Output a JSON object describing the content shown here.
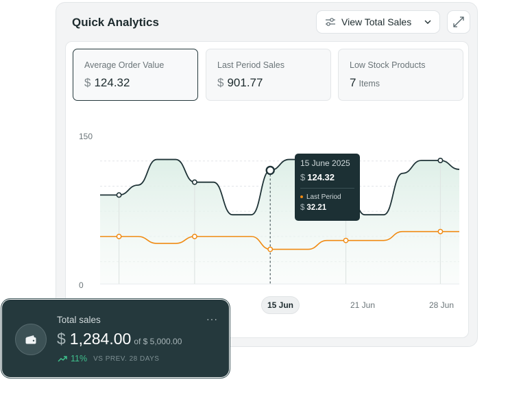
{
  "panel": {
    "title": "Quick Analytics",
    "view_button": {
      "label": "View Total Sales",
      "icon": "sliders-icon"
    },
    "expand_icon": "expand-icon"
  },
  "stats": [
    {
      "label": "Average Order Value",
      "currency": "$",
      "value": "124.32",
      "unit": ""
    },
    {
      "label": "Last Period Sales",
      "currency": "$",
      "value": "901.77",
      "unit": ""
    },
    {
      "label": "Low Stock Products",
      "currency": "",
      "value": "7",
      "unit": "Items"
    }
  ],
  "chart_data": {
    "type": "line",
    "ylim": [
      0,
      150
    ],
    "y_ticks": [
      "150",
      "0"
    ],
    "x_ticks": [
      "15 Jun",
      "21 Jun",
      "28 Jun"
    ],
    "selected_x": "15 Jun",
    "series": [
      {
        "values": [
          90,
          90,
          100,
          126,
          126,
          103,
          103,
          70,
          70,
          115,
          126,
          126,
          105,
          105,
          70,
          70,
          112,
          125,
          125,
          116
        ]
      },
      {
        "values": [
          48,
          48,
          48,
          41,
          41,
          48,
          48,
          48,
          48,
          35,
          35,
          35,
          44,
          44,
          44,
          44,
          53,
          53,
          53,
          53
        ]
      }
    ],
    "colors": {
      "current": "#1f3337",
      "last_period": "#f08a12"
    }
  },
  "tooltip": {
    "date": "15 June 2025",
    "currency": "$",
    "value": "124.32",
    "compare_label": "Last Period",
    "compare_value": "32.21"
  },
  "summary_card": {
    "title": "Total sales",
    "currency": "$",
    "amount": "1,284.00",
    "of_text": "of $ 5,000.00",
    "trend_pct": "11%",
    "trend_note": "VS PREV. 28 DAYS",
    "menu_glyph": "···"
  }
}
